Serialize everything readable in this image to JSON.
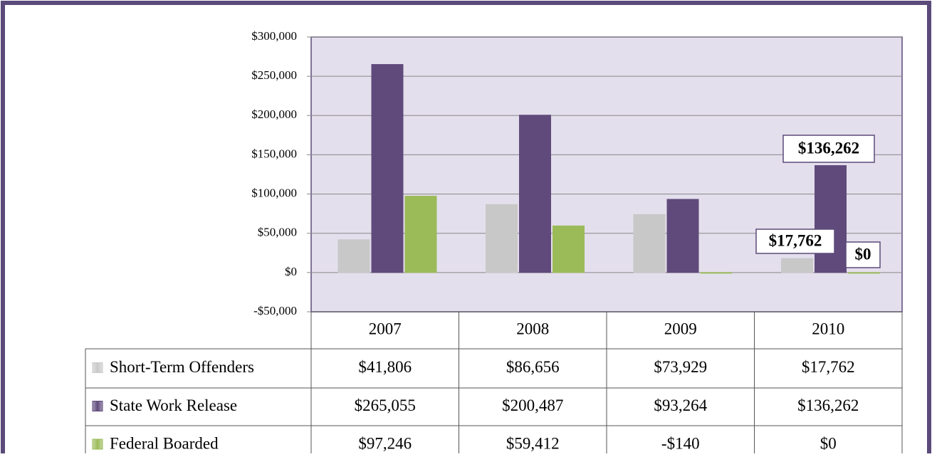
{
  "chart_data": {
    "type": "bar",
    "categories": [
      "2007",
      "2008",
      "2009",
      "2010"
    ],
    "series": [
      {
        "name": "Short-Term Offenders",
        "color": "#c8c8c8",
        "values": [
          41806,
          86656,
          73929,
          17762
        ],
        "value_labels": [
          "$41,806",
          "$86,656",
          "$73,929",
          "$17,762"
        ]
      },
      {
        "name": "State Work Release",
        "color": "#604a7b",
        "values": [
          265055,
          200487,
          93264,
          136262
        ],
        "value_labels": [
          "$265,055",
          "$200,487",
          "$93,264",
          "$136,262"
        ]
      },
      {
        "name": "Federal Boarded",
        "color": "#9bbb59",
        "values": [
          97246,
          59412,
          -140,
          0
        ],
        "value_labels": [
          "$97,246",
          "$59,412",
          "-$140",
          "$0"
        ]
      }
    ],
    "ylim": [
      -50000,
      300000
    ],
    "yticks": [
      {
        "value": -50000,
        "label": "-$50,000"
      },
      {
        "value": 0,
        "label": "$0"
      },
      {
        "value": 50000,
        "label": "$50,000"
      },
      {
        "value": 100000,
        "label": "$100,000"
      },
      {
        "value": 150000,
        "label": "$150,000"
      },
      {
        "value": 200000,
        "label": "$200,000"
      },
      {
        "value": 250000,
        "label": "$250,000"
      },
      {
        "value": 300000,
        "label": "$300,000"
      }
    ],
    "grid": true,
    "data_label_category": 3
  }
}
